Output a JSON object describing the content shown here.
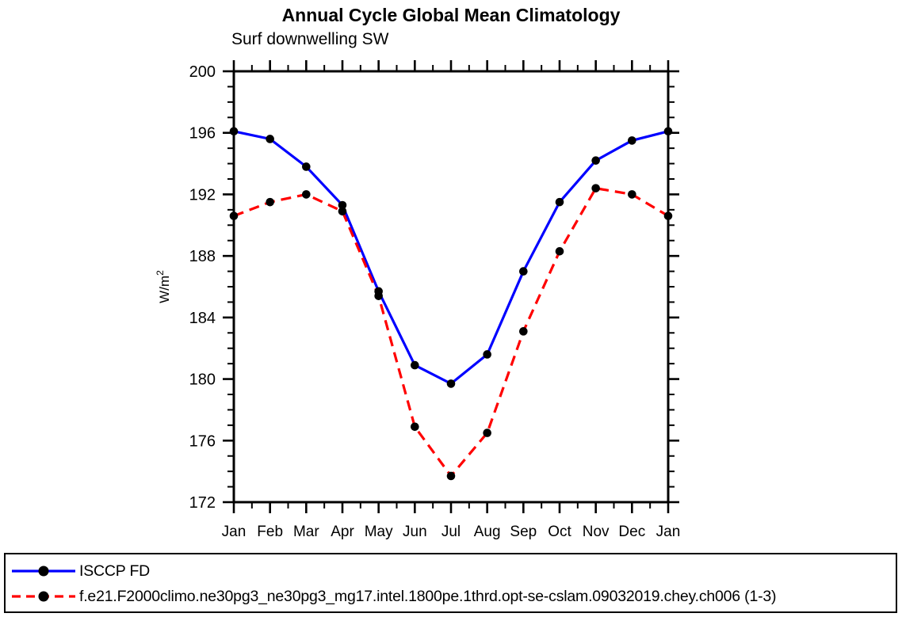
{
  "page": {
    "background": "#ffffff",
    "text_color": "#000000"
  },
  "chart_data": {
    "type": "line",
    "title": "Annual Cycle Global Mean Climatology",
    "subtitle": "Surf downwelling SW",
    "ylabel": "W/m",
    "ylabel_sup": "2",
    "xlabel": "",
    "categories": [
      "Jan",
      "Feb",
      "Mar",
      "Apr",
      "May",
      "Jun",
      "Jul",
      "Aug",
      "Sep",
      "Oct",
      "Nov",
      "Dec",
      "Jan"
    ],
    "ylim": [
      172,
      200
    ],
    "ytick_major": 4,
    "ytick_minor": 1,
    "grid": false,
    "legend_position": "bottom-box-full-width",
    "axis_color": "#000000",
    "marker_shape": "filled-circle",
    "marker_color": "#000000",
    "series": [
      {
        "name": "ISCCP FD",
        "color": "#0000ff",
        "style": "solid",
        "values": [
          196.1,
          195.6,
          193.8,
          191.3,
          185.7,
          180.9,
          179.7,
          181.6,
          187.0,
          191.5,
          194.2,
          195.5,
          196.1
        ]
      },
      {
        "name": "f.e21.F2000climo.ne30pg3_ne30pg3_mg17.intel.1800pe.1thrd.opt-se-cslam.09032019.chey.ch006 (1-3)",
        "color": "#ff0000",
        "style": "dashed",
        "values": [
          190.6,
          191.5,
          192.0,
          190.9,
          185.4,
          176.9,
          173.7,
          176.5,
          183.1,
          188.3,
          192.4,
          192.0,
          190.6
        ]
      }
    ]
  }
}
